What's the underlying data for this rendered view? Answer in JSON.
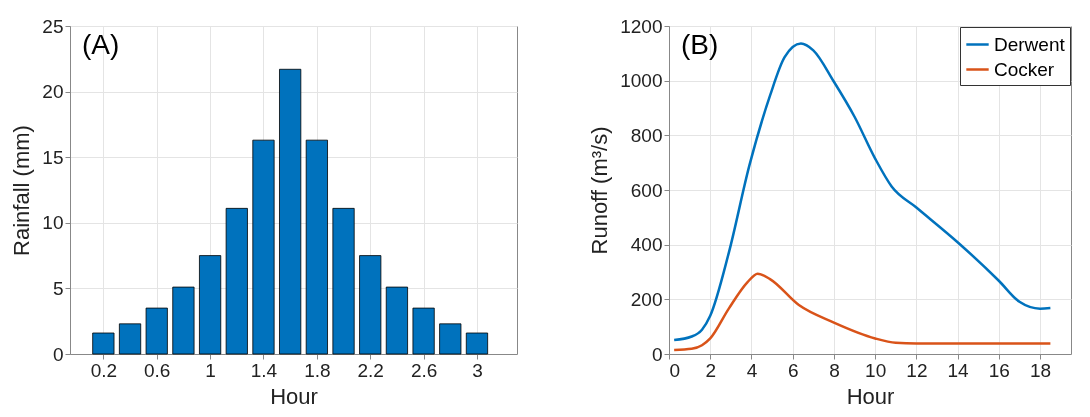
{
  "chart_data": [
    {
      "type": "bar",
      "annotations": [
        "(A)"
      ],
      "xlabel": "Hour",
      "ylabel": "Rainfall (mm)",
      "x": [
        0.2,
        0.4,
        0.6,
        0.8,
        1.0,
        1.2,
        1.4,
        1.6,
        1.8,
        2.0,
        2.2,
        2.4,
        2.6,
        2.8,
        3.0
      ],
      "series": [
        {
          "color": "#0072bd",
          "values": [
            1.6,
            2.3,
            3.5,
            5.1,
            7.5,
            11.1,
            16.3,
            21.7,
            16.3,
            11.1,
            7.5,
            5.1,
            3.5,
            2.3,
            1.6
          ]
        }
      ],
      "xlim": [
        -0.05,
        3.3
      ],
      "xticks": [
        0.2,
        0.6,
        1,
        1.4,
        1.8,
        2.2,
        2.6,
        3
      ],
      "ylim": [
        0,
        25
      ],
      "yticks": [
        0,
        5,
        10,
        15,
        20,
        25
      ],
      "grid": true
    },
    {
      "type": "line",
      "annotations": [
        "(B)"
      ],
      "xlabel": "Hour",
      "ylabel": "Runoff (m³/s)",
      "series": [
        {
          "name": "Derwent",
          "color": "#0072bd",
          "x": [
            0.25,
            1.1,
            1.6,
            2,
            2.9,
            3.9,
            4.9,
            5.6,
            6.4,
            7,
            8,
            9,
            10,
            10.8,
            12,
            14,
            16,
            17,
            18,
            18.5
          ],
          "values": [
            51,
            64,
            89,
            140,
            370,
            690,
            945,
            1085,
            1136,
            1111,
            996,
            868,
            715,
            613,
            536,
            409,
            268,
            191,
            166,
            168
          ]
        },
        {
          "name": "Cocker",
          "color": "#d95319",
          "x": [
            0.25,
            1.1,
            1.6,
            2,
            2.9,
            3.8,
            4.3,
            4.9,
            6.3,
            8,
            10,
            11,
            12,
            18.5
          ],
          "values": [
            15,
            19,
            32,
            57,
            166,
            262,
            294,
            274,
            179,
            115,
            57,
            41,
            38,
            38
          ]
        }
      ],
      "xlim": [
        0,
        19.5
      ],
      "xticks": [
        0,
        2,
        4,
        6,
        8,
        10,
        12,
        14,
        16,
        18
      ],
      "ylim": [
        0,
        1200
      ],
      "yticks": [
        0,
        200,
        400,
        600,
        800,
        1000,
        1200
      ],
      "grid": true,
      "legend": "top right",
      "line_style": "solid",
      "marker": "none"
    }
  ]
}
